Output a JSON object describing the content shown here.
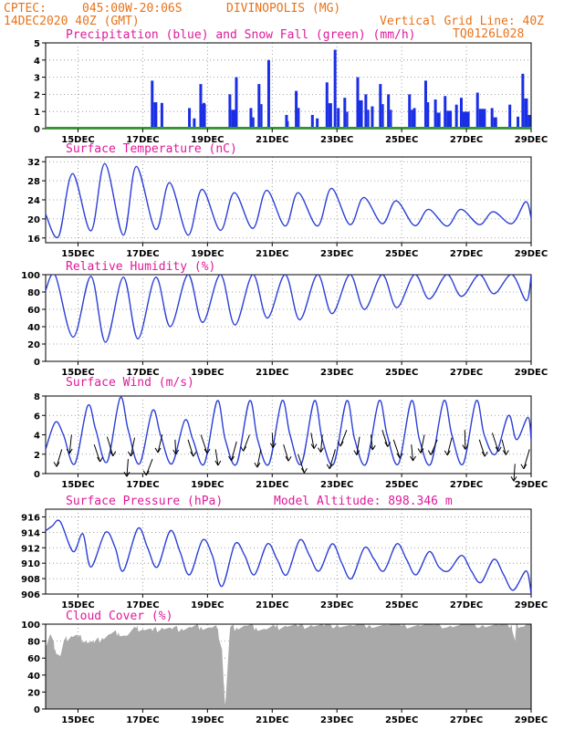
{
  "header": {
    "source": "CPTEC:",
    "coords": "045:00W-20:06S",
    "location": "DIVINOPOLIS (MG)",
    "run": "14DEC2020 40Z (GMT)",
    "grid_note": "Vertical Grid Line: 40Z",
    "model": "TQ0126L028"
  },
  "x_tick_labels": [
    "15DEC",
    "17DEC",
    "19DEC",
    "21DEC",
    "23DEC",
    "25DEC",
    "27DEC",
    "29DEC"
  ],
  "colors": {
    "precip": "#1a2ee6",
    "snow": "#1fa01f",
    "line": "#2b3fd6",
    "cloud": "#a9a9a9",
    "header": "#e8731a",
    "title": "#e01a9a"
  },
  "chart_data": [
    {
      "id": "precip",
      "type": "bar",
      "title": "Precipitation (blue) and Snow Fall (green) (mm/h)",
      "ylim": [
        0,
        5
      ],
      "yticks": [
        0,
        1,
        2,
        3,
        4,
        5
      ],
      "x_range_days": [
        14.0,
        29.0
      ],
      "spikes": [
        [
          17.25,
          2.8,
          1,
          17.45
        ],
        [
          17.55,
          1.5,
          0,
          0
        ],
        [
          18.4,
          1.2,
          0,
          0
        ],
        [
          18.55,
          0.6,
          0,
          0
        ],
        [
          18.75,
          2.6,
          1,
          18.95
        ],
        [
          18.85,
          1.5,
          0,
          0
        ],
        [
          19.65,
          2.0,
          1,
          19.9
        ],
        [
          19.85,
          3.0,
          0,
          0
        ],
        [
          20.3,
          1.2,
          1,
          20.45
        ],
        [
          20.55,
          2.6,
          1,
          20.7
        ],
        [
          20.85,
          4.0,
          0,
          0
        ],
        [
          21.4,
          0.8,
          1,
          21.5
        ],
        [
          21.7,
          2.2,
          1,
          21.85
        ],
        [
          22.2,
          0.8,
          0,
          0
        ],
        [
          22.35,
          0.6,
          0,
          0
        ],
        [
          22.65,
          2.7,
          1,
          22.85
        ],
        [
          22.9,
          4.6,
          0,
          0
        ],
        [
          23.0,
          1.2,
          0,
          0
        ],
        [
          23.2,
          1.8,
          1,
          23.35
        ],
        [
          23.6,
          3.0,
          1,
          23.8
        ],
        [
          23.85,
          2.0,
          1,
          24.0
        ],
        [
          24.05,
          1.3,
          0,
          0
        ],
        [
          24.3,
          2.6,
          1,
          24.45
        ],
        [
          24.55,
          2.0,
          1,
          24.7
        ],
        [
          25.2,
          2.0,
          1,
          25.35
        ],
        [
          25.35,
          1.2,
          0,
          0
        ],
        [
          25.7,
          2.8,
          1,
          25.85
        ],
        [
          26.0,
          1.7,
          1,
          26.2
        ],
        [
          26.3,
          1.9,
          1,
          26.55
        ],
        [
          26.65,
          1.4,
          0,
          0
        ],
        [
          26.8,
          1.8,
          1,
          27.1
        ],
        [
          27.3,
          2.1,
          1,
          27.6
        ],
        [
          27.75,
          1.2,
          1,
          27.95
        ],
        [
          28.3,
          1.4,
          0,
          0
        ],
        [
          28.55,
          0.7,
          0,
          0
        ],
        [
          28.7,
          3.2,
          1,
          28.9
        ],
        [
          28.9,
          0.8,
          0,
          0
        ]
      ]
    },
    {
      "id": "temp",
      "type": "line",
      "title": "Surface Temperature (nC)",
      "ylim": [
        15,
        33
      ],
      "yticks": [
        16,
        20,
        24,
        28,
        32
      ],
      "x": [
        14.0,
        14.4,
        14.83,
        15.4,
        15.83,
        16.4,
        16.8,
        17.4,
        17.83,
        18.4,
        18.83,
        19.4,
        19.83,
        20.4,
        20.83,
        21.4,
        21.8,
        22.4,
        22.83,
        23.4,
        23.83,
        24.4,
        24.83,
        25.4,
        25.83,
        26.4,
        26.83,
        27.4,
        27.83,
        28.4,
        28.83,
        29.0
      ],
      "y": [
        21,
        16.3,
        29.5,
        17.5,
        31.6,
        16.6,
        31.0,
        17.8,
        27.6,
        16.6,
        26.2,
        17.6,
        25.5,
        18.0,
        26.0,
        18.5,
        25.5,
        18.5,
        26.4,
        18.8,
        24.5,
        19.0,
        23.8,
        18.6,
        22.0,
        18.5,
        22.0,
        18.8,
        21.5,
        19.0,
        23.6,
        20.2
      ]
    },
    {
      "id": "rh",
      "type": "line",
      "title": "Relative Humidity (%)",
      "ylim": [
        0,
        100
      ],
      "yticks": [
        0,
        20,
        40,
        60,
        80,
        100
      ],
      "x": [
        14.0,
        14.3,
        14.85,
        15.4,
        15.85,
        16.4,
        16.85,
        17.4,
        17.85,
        18.4,
        18.85,
        19.4,
        19.85,
        20.4,
        20.85,
        21.4,
        21.85,
        22.4,
        22.85,
        23.4,
        23.85,
        24.4,
        24.85,
        25.4,
        25.85,
        26.4,
        26.85,
        27.4,
        27.85,
        28.4,
        28.85,
        29.0
      ],
      "y": [
        82,
        99,
        28,
        98,
        22,
        97,
        26,
        97,
        40,
        100,
        45,
        100,
        42,
        100,
        50,
        100,
        48,
        100,
        55,
        100,
        60,
        100,
        62,
        100,
        72,
        100,
        75,
        100,
        78,
        100,
        70,
        99
      ]
    },
    {
      "id": "wind",
      "type": "line",
      "title": "Surface Wind (m/s)",
      "ylim": [
        0,
        8
      ],
      "yticks": [
        0,
        2,
        4,
        6,
        8
      ],
      "x": [
        14.0,
        14.3,
        14.55,
        14.9,
        15.3,
        15.55,
        15.9,
        16.3,
        16.55,
        16.9,
        17.3,
        17.55,
        17.9,
        18.3,
        18.55,
        18.9,
        19.3,
        19.55,
        19.9,
        20.3,
        20.55,
        20.9,
        21.3,
        21.55,
        21.9,
        22.3,
        22.55,
        22.9,
        23.3,
        23.55,
        23.9,
        24.3,
        24.55,
        24.9,
        25.3,
        25.55,
        25.9,
        26.3,
        26.55,
        26.9,
        27.3,
        27.55,
        27.9,
        28.3,
        28.55,
        28.9,
        29.0
      ],
      "y": [
        2.5,
        5.3,
        4.0,
        1.0,
        7.0,
        4.5,
        1.2,
        7.8,
        4.5,
        1.0,
        6.5,
        4.0,
        1.0,
        5.5,
        3.5,
        1.0,
        7.5,
        3.5,
        1.0,
        7.5,
        3.5,
        1.0,
        7.5,
        4.0,
        1.0,
        7.5,
        3.5,
        1.0,
        7.5,
        3.5,
        1.0,
        7.5,
        4.0,
        1.0,
        7.5,
        3.5,
        1.0,
        7.5,
        4.0,
        1.0,
        7.5,
        4.0,
        2.0,
        6.0,
        3.5,
        5.8,
        3.5
      ],
      "arrows": [
        [
          14.5,
          2.5,
          3.8
        ],
        [
          14.8,
          4.0,
          3.8
        ],
        [
          15.5,
          3.0,
          3.8
        ],
        [
          15.9,
          3.8,
          3.8
        ],
        [
          16.55,
          1.5,
          3.8
        ],
        [
          16.75,
          3.7,
          3.8
        ],
        [
          17.3,
          1.5,
          3.8
        ],
        [
          17.6,
          4.0,
          3.8
        ],
        [
          18.0,
          3.5,
          3.8
        ],
        [
          18.4,
          3.5,
          3.8
        ],
        [
          18.8,
          4.0,
          3.8
        ],
        [
          19.25,
          2.5,
          3.8
        ],
        [
          19.9,
          3.3,
          3.8
        ],
        [
          20.3,
          4.0,
          3.8
        ],
        [
          20.65,
          2.5,
          3.8
        ],
        [
          21.0,
          4.2,
          3.8
        ],
        [
          21.35,
          3.0,
          3.8
        ],
        [
          21.8,
          2.0,
          3.8
        ],
        [
          22.2,
          4.2,
          3.8
        ],
        [
          22.55,
          4.0,
          3.8
        ],
        [
          22.95,
          2.5,
          3.8
        ],
        [
          23.3,
          4.5,
          3.8
        ],
        [
          23.7,
          3.8,
          3.8
        ],
        [
          24.05,
          4.0,
          3.8
        ],
        [
          24.4,
          4.5,
          3.8
        ],
        [
          24.75,
          3.5,
          3.8
        ],
        [
          25.3,
          3.0,
          3.8
        ],
        [
          25.7,
          4.0,
          3.8
        ],
        [
          26.1,
          3.5,
          3.8
        ],
        [
          26.55,
          3.7,
          3.8
        ],
        [
          26.95,
          4.5,
          3.8
        ],
        [
          27.4,
          3.5,
          3.8
        ],
        [
          27.8,
          4.2,
          3.8
        ],
        [
          28.1,
          3.5,
          3.8
        ],
        [
          28.5,
          1.0,
          3.8
        ],
        [
          28.95,
          2.5,
          3.8
        ]
      ]
    },
    {
      "id": "pressure",
      "type": "line",
      "title": "Surface Pressure (hPa)",
      "subtitle": "Model Altitude: 898.346 m",
      "ylim": [
        906,
        917
      ],
      "yticks": [
        906,
        908,
        910,
        912,
        914,
        916
      ],
      "x": [
        14.0,
        14.2,
        14.45,
        14.85,
        15.15,
        15.4,
        15.85,
        16.15,
        16.4,
        16.85,
        17.15,
        17.45,
        17.85,
        18.15,
        18.45,
        18.85,
        19.15,
        19.45,
        19.85,
        20.15,
        20.45,
        20.85,
        21.15,
        21.45,
        21.85,
        22.15,
        22.45,
        22.85,
        23.15,
        23.45,
        23.85,
        24.15,
        24.45,
        24.85,
        25.15,
        25.45,
        25.85,
        26.15,
        26.45,
        26.85,
        27.15,
        27.45,
        27.85,
        28.15,
        28.45,
        28.85,
        29.0
      ],
      "y": [
        914.2,
        914.8,
        915.4,
        911.5,
        913.8,
        909.5,
        914.0,
        912.0,
        909.0,
        914.5,
        912.0,
        909.5,
        914.2,
        911.5,
        908.5,
        913.0,
        911.0,
        907.0,
        912.5,
        911.0,
        908.5,
        912.5,
        910.5,
        908.5,
        913.0,
        911.0,
        909.0,
        912.5,
        910.0,
        908.0,
        912.0,
        910.5,
        909.0,
        912.5,
        910.5,
        908.5,
        911.5,
        909.5,
        909.0,
        911.0,
        909.0,
        907.5,
        910.5,
        908.5,
        906.5,
        909.0,
        906.0
      ]
    },
    {
      "id": "cloud",
      "type": "area",
      "title": "Cloud Cover (%)",
      "ylim": [
        0,
        100
      ],
      "yticks": [
        0,
        20,
        40,
        60,
        80,
        100
      ],
      "x": [
        14.0,
        14.15,
        14.3,
        14.45,
        14.6,
        14.8,
        15.0,
        15.25,
        15.5,
        15.75,
        16.0,
        16.25,
        16.5,
        16.8,
        17.0,
        17.3,
        17.6,
        17.9,
        18.2,
        18.5,
        18.8,
        19.1,
        19.3,
        19.45,
        19.5,
        19.55,
        19.7,
        19.9,
        20.2,
        20.5,
        20.8,
        21.1,
        21.4,
        21.8,
        22.2,
        22.6,
        23.0,
        23.5,
        24.0,
        24.5,
        25.0,
        25.5,
        26.0,
        26.5,
        27.0,
        27.5,
        28.0,
        28.4,
        28.5,
        28.55,
        28.7,
        29.0
      ],
      "y": [
        75,
        88,
        70,
        62,
        82,
        86,
        85,
        80,
        78,
        84,
        88,
        90,
        86,
        95,
        94,
        92,
        96,
        94,
        95,
        96,
        97,
        96,
        95,
        70,
        30,
        5,
        96,
        96,
        98,
        96,
        94,
        96,
        98,
        97,
        99,
        98,
        99,
        98,
        99,
        99,
        98,
        99,
        99,
        98,
        99,
        99,
        99,
        99,
        80,
        100,
        97,
        100
      ]
    }
  ]
}
